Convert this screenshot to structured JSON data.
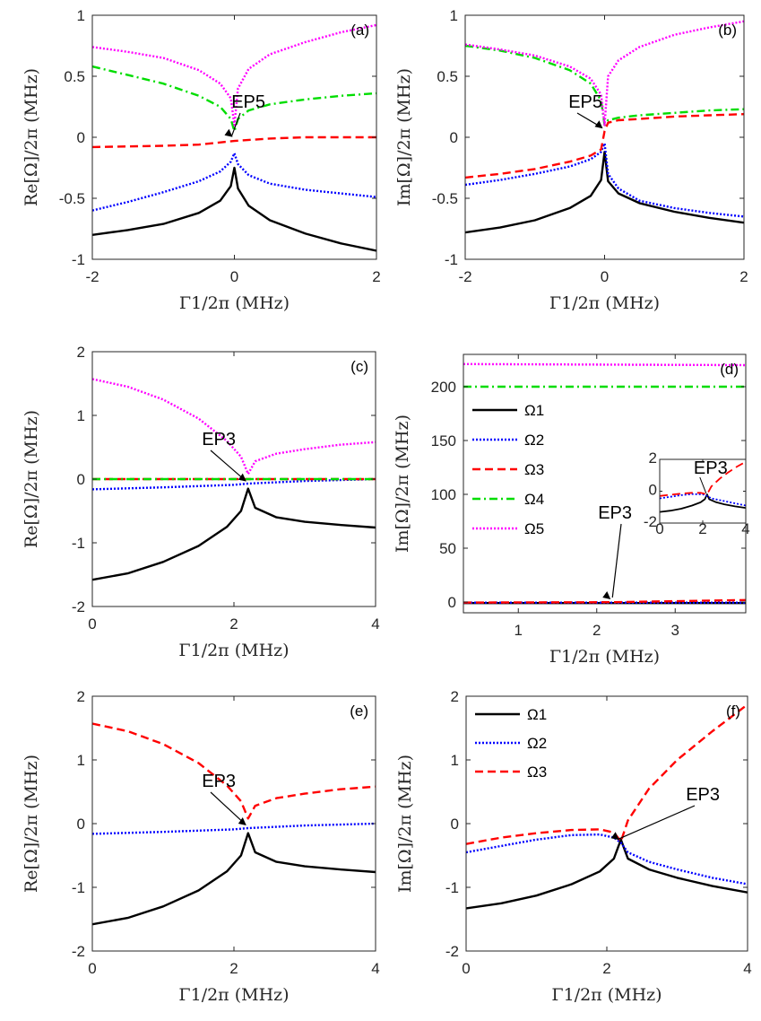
{
  "figure": {
    "series_styles": [
      {
        "name": "Ω1",
        "color": "#000000",
        "dash": "solid"
      },
      {
        "name": "Ω2",
        "color": "#0000ff",
        "dash": "dot"
      },
      {
        "name": "Ω3",
        "color": "#ff0000",
        "dash": "dash"
      },
      {
        "name": "Ω4",
        "color": "#00dd00",
        "dash": "dashdot"
      },
      {
        "name": "Ω5",
        "color": "#ff00ff",
        "dash": "dot"
      }
    ]
  },
  "chart_data": [
    {
      "id": "a",
      "panel_label": "(a)",
      "type": "line",
      "xlabel": "Γ1/2π (MHz)",
      "ylabel": "Re[Ω]/2π (MHz)",
      "xlim": [
        -2,
        2
      ],
      "ylim": [
        -1,
        1
      ],
      "xticks": [
        -2,
        0,
        2
      ],
      "xtick_labels": [
        "-2",
        "0",
        "2"
      ],
      "yticks": [
        -1,
        -0.5,
        0,
        0.5,
        1
      ],
      "ytick_labels": [
        "-1",
        "-0.5",
        "0",
        "0.5",
        "1"
      ],
      "annotation": {
        "text": "EP5",
        "x": 0,
        "y": -0.02
      },
      "series": [
        {
          "name": "Ω1",
          "x": [
            -2,
            -1.5,
            -1,
            -0.5,
            -0.2,
            -0.05,
            0,
            0.05,
            0.2,
            0.5,
            1,
            1.5,
            2
          ],
          "values": [
            -0.8,
            -0.76,
            -0.71,
            -0.62,
            -0.52,
            -0.4,
            -0.25,
            -0.42,
            -0.56,
            -0.68,
            -0.79,
            -0.87,
            -0.93
          ]
        },
        {
          "name": "Ω2",
          "x": [
            -2,
            -1.5,
            -1,
            -0.5,
            -0.2,
            -0.05,
            0,
            0.05,
            0.2,
            0.5,
            1,
            1.5,
            2
          ],
          "values": [
            -0.6,
            -0.53,
            -0.45,
            -0.36,
            -0.28,
            -0.2,
            -0.13,
            -0.22,
            -0.31,
            -0.38,
            -0.43,
            -0.46,
            -0.49
          ]
        },
        {
          "name": "Ω3",
          "x": [
            -2,
            -1,
            -0.5,
            0,
            0.5,
            1,
            2
          ],
          "values": [
            -0.08,
            -0.07,
            -0.06,
            -0.03,
            -0.01,
            0,
            0
          ]
        },
        {
          "name": "Ω4",
          "x": [
            -2,
            -1.5,
            -1,
            -0.5,
            -0.2,
            -0.05,
            0,
            0.05,
            0.2,
            0.5,
            1,
            1.5,
            2
          ],
          "values": [
            0.58,
            0.51,
            0.44,
            0.34,
            0.25,
            0.15,
            0.05,
            0.15,
            0.22,
            0.27,
            0.31,
            0.34,
            0.36
          ]
        },
        {
          "name": "Ω5",
          "x": [
            -2,
            -1.5,
            -1,
            -0.5,
            -0.2,
            -0.05,
            0,
            0.05,
            0.2,
            0.5,
            1,
            1.5,
            2
          ],
          "values": [
            0.74,
            0.7,
            0.65,
            0.55,
            0.44,
            0.32,
            0.1,
            0.4,
            0.56,
            0.68,
            0.78,
            0.86,
            0.92
          ]
        }
      ]
    },
    {
      "id": "b",
      "panel_label": "(b)",
      "type": "line",
      "xlabel": "Γ1/2π (MHz)",
      "ylabel": "Im[Ω]/2π (MHz)",
      "xlim": [
        -2,
        2
      ],
      "ylim": [
        -1,
        1
      ],
      "xticks": [
        -2,
        0,
        2
      ],
      "xtick_labels": [
        "-2",
        "0",
        "2"
      ],
      "yticks": [
        -1,
        -0.5,
        0,
        0.5,
        1
      ],
      "ytick_labels": [
        "-1",
        "-0.5",
        "0",
        "0.5",
        "1"
      ],
      "annotation": {
        "text": "EP5",
        "x": 0,
        "y": 0.05
      },
      "series": [
        {
          "name": "Ω1",
          "x": [
            -2,
            -1.5,
            -1,
            -0.5,
            -0.2,
            -0.05,
            0,
            0.05,
            0.2,
            0.5,
            1,
            1.5,
            2
          ],
          "values": [
            -0.78,
            -0.74,
            -0.68,
            -0.58,
            -0.48,
            -0.35,
            -0.12,
            -0.36,
            -0.46,
            -0.54,
            -0.61,
            -0.66,
            -0.7
          ]
        },
        {
          "name": "Ω2",
          "x": [
            -2,
            -1.5,
            -1,
            -0.5,
            -0.2,
            -0.05,
            0,
            0.05,
            0.2,
            0.5,
            1,
            1.5,
            2
          ],
          "values": [
            -0.39,
            -0.35,
            -0.3,
            -0.24,
            -0.18,
            -0.12,
            -0.05,
            -0.3,
            -0.42,
            -0.52,
            -0.58,
            -0.62,
            -0.65
          ]
        },
        {
          "name": "Ω3",
          "x": [
            -2,
            -1.5,
            -1,
            -0.5,
            -0.2,
            -0.05,
            0,
            0.05,
            0.2,
            0.5,
            1,
            1.5,
            2
          ],
          "values": [
            -0.33,
            -0.3,
            -0.26,
            -0.2,
            -0.15,
            -0.1,
            0.05,
            0.12,
            0.14,
            0.15,
            0.17,
            0.18,
            0.19
          ]
        },
        {
          "name": "Ω4",
          "x": [
            -2,
            -1.5,
            -1,
            -0.5,
            -0.2,
            -0.05,
            0,
            0.05,
            0.2,
            0.5,
            1,
            1.5,
            2
          ],
          "values": [
            0.75,
            0.71,
            0.65,
            0.55,
            0.44,
            0.3,
            0.1,
            0.14,
            0.16,
            0.18,
            0.2,
            0.22,
            0.23
          ]
        },
        {
          "name": "Ω5",
          "x": [
            -2,
            -1.5,
            -1,
            -0.5,
            -0.2,
            -0.05,
            0,
            0.05,
            0.2,
            0.5,
            1,
            1.5,
            2
          ],
          "values": [
            0.76,
            0.72,
            0.67,
            0.58,
            0.48,
            0.35,
            0.1,
            0.5,
            0.63,
            0.74,
            0.84,
            0.9,
            0.95
          ]
        }
      ]
    },
    {
      "id": "c",
      "panel_label": "(c)",
      "type": "line",
      "xlabel": "Γ1/2π (MHz)",
      "ylabel": "Re[Ω]/2π (MHz)",
      "xlim": [
        0,
        4
      ],
      "ylim": [
        -2,
        2
      ],
      "xticks": [
        0,
        2,
        4
      ],
      "xtick_labels": [
        "0",
        "2",
        "4"
      ],
      "yticks": [
        -2,
        -1,
        0,
        1,
        2
      ],
      "ytick_labels": [
        "-2",
        "-1",
        "0",
        "1",
        "2"
      ],
      "annotation": {
        "text": "EP3",
        "x": 2.2,
        "y": -0.08
      },
      "series": [
        {
          "name": "Ω1",
          "x": [
            0,
            0.5,
            1,
            1.5,
            1.9,
            2.1,
            2.2,
            2.3,
            2.6,
            3,
            3.5,
            4
          ],
          "values": [
            -1.58,
            -1.48,
            -1.3,
            -1.05,
            -0.75,
            -0.5,
            -0.15,
            -0.45,
            -0.6,
            -0.67,
            -0.72,
            -0.76
          ]
        },
        {
          "name": "Ω2",
          "x": [
            0,
            1,
            2,
            2.2,
            3,
            4
          ],
          "values": [
            -0.16,
            -0.13,
            -0.09,
            -0.07,
            -0.03,
            0
          ]
        },
        {
          "name": "Ω3",
          "x": [
            0,
            4
          ],
          "values": [
            0,
            0
          ]
        },
        {
          "name": "Ω4",
          "x": [
            0,
            4
          ],
          "values": [
            0,
            0
          ]
        },
        {
          "name": "Ω5",
          "x": [
            0,
            0.5,
            1,
            1.5,
            1.9,
            2.1,
            2.2,
            2.3,
            2.6,
            3,
            3.5,
            4
          ],
          "values": [
            1.57,
            1.45,
            1.25,
            0.95,
            0.6,
            0.35,
            0.08,
            0.28,
            0.4,
            0.47,
            0.54,
            0.58
          ]
        }
      ]
    },
    {
      "id": "d",
      "panel_label": "(d)",
      "type": "line",
      "xlabel": "Γ1/2π (MHz)",
      "ylabel": "Im[Ω]/2π (MHz)",
      "xlim": [
        0.3,
        3.9
      ],
      "ylim": [
        -10,
        230
      ],
      "xticks": [
        1,
        2,
        3
      ],
      "xtick_labels": [
        "1",
        "2",
        "3"
      ],
      "yticks": [
        0,
        50,
        100,
        150,
        200
      ],
      "ytick_labels": [
        "0",
        "50",
        "100",
        "150",
        "200"
      ],
      "annotation": {
        "text": "EP3",
        "x": 2.2,
        "y": 0
      },
      "legend": {
        "entries": [
          "Ω1",
          "Ω2",
          "Ω3",
          "Ω4",
          "Ω5"
        ]
      },
      "series": [
        {
          "name": "Ω1",
          "x": [
            0.3,
            3.9
          ],
          "values": [
            -1,
            -1
          ]
        },
        {
          "name": "Ω2",
          "x": [
            0.3,
            3.9
          ],
          "values": [
            -0.6,
            -0.6
          ]
        },
        {
          "name": "Ω3",
          "x": [
            0.3,
            2.2,
            3.9
          ],
          "values": [
            -0.5,
            -0.2,
            1.8
          ]
        },
        {
          "name": "Ω4",
          "x": [
            0.3,
            3.9
          ],
          "values": [
            200,
            200
          ]
        },
        {
          "name": "Ω5",
          "x": [
            0.3,
            3.9
          ],
          "values": [
            221,
            220
          ]
        }
      ],
      "inset": {
        "xlim": [
          0,
          4
        ],
        "ylim": [
          -2,
          2
        ],
        "xticks": [
          0,
          2,
          4
        ],
        "xtick_labels": [
          "0",
          "2",
          "4"
        ],
        "yticks": [
          -2,
          0,
          2
        ],
        "ytick_labels": [
          "-2",
          "0",
          "2"
        ],
        "annotation": {
          "text": "EP3",
          "x": 2.2,
          "y": -0.3
        },
        "series": [
          {
            "name": "Ω1",
            "x": [
              0,
              0.5,
              1,
              1.5,
              1.9,
              2.1,
              2.2,
              2.3,
              2.6,
              3,
              3.5,
              4
            ],
            "values": [
              -1.3,
              -1.22,
              -1.1,
              -0.9,
              -0.7,
              -0.5,
              -0.2,
              -0.5,
              -0.68,
              -0.82,
              -0.95,
              -1.05
            ]
          },
          {
            "name": "Ω2",
            "x": [
              0,
              0.5,
              1,
              1.5,
              2,
              2.2,
              2.4,
              3,
              3.5,
              4
            ],
            "values": [
              -0.45,
              -0.35,
              -0.25,
              -0.18,
              -0.2,
              -0.3,
              -0.45,
              -0.62,
              -0.76,
              -0.9
            ]
          },
          {
            "name": "Ω3",
            "x": [
              0,
              0.5,
              1,
              1.5,
              1.9,
              2.2,
              2.4,
              2.8,
              3.2,
              3.6,
              4
            ],
            "values": [
              -0.3,
              -0.22,
              -0.15,
              -0.1,
              -0.1,
              -0.2,
              0.3,
              0.8,
              1.2,
              1.55,
              1.85
            ]
          }
        ]
      }
    },
    {
      "id": "e",
      "panel_label": "(e)",
      "type": "line",
      "xlabel": "Γ1/2π (MHz)",
      "ylabel": "Re[Ω]/2π (MHz)",
      "xlim": [
        0,
        4
      ],
      "ylim": [
        -2,
        2
      ],
      "xticks": [
        0,
        2,
        4
      ],
      "xtick_labels": [
        "0",
        "2",
        "4"
      ],
      "yticks": [
        -2,
        -1,
        0,
        1,
        2
      ],
      "ytick_labels": [
        "-2",
        "-1",
        "0",
        "1",
        "2"
      ],
      "annotation": {
        "text": "EP3",
        "x": 2.2,
        "y": -0.07
      },
      "series": [
        {
          "name": "Ω1",
          "x": [
            0,
            0.5,
            1,
            1.5,
            1.9,
            2.1,
            2.2,
            2.3,
            2.6,
            3,
            3.5,
            4
          ],
          "values": [
            -1.58,
            -1.48,
            -1.3,
            -1.05,
            -0.75,
            -0.5,
            -0.15,
            -0.45,
            -0.6,
            -0.67,
            -0.72,
            -0.76
          ]
        },
        {
          "name": "Ω2",
          "x": [
            0,
            1,
            2,
            2.2,
            3,
            4
          ],
          "values": [
            -0.16,
            -0.13,
            -0.09,
            -0.07,
            -0.03,
            0
          ]
        },
        {
          "name": "Ω3",
          "x": [
            0,
            0.5,
            1,
            1.5,
            1.9,
            2.1,
            2.2,
            2.3,
            2.6,
            3,
            3.5,
            4
          ],
          "values": [
            1.57,
            1.45,
            1.25,
            0.95,
            0.6,
            0.35,
            0.08,
            0.28,
            0.4,
            0.47,
            0.54,
            0.58
          ]
        }
      ]
    },
    {
      "id": "f",
      "panel_label": "(f)",
      "type": "line",
      "xlabel": "Γ1/2π (MHz)",
      "ylabel": "Im[Ω]/2π (MHz)",
      "xlim": [
        0,
        4
      ],
      "ylim": [
        -2,
        2
      ],
      "xticks": [
        0,
        2,
        4
      ],
      "xtick_labels": [
        "0",
        "2",
        "4"
      ],
      "yticks": [
        -2,
        -1,
        0,
        1,
        2
      ],
      "ytick_labels": [
        "-2",
        "-1",
        "0",
        "1",
        "2"
      ],
      "annotation": {
        "text": "EP3",
        "x": 2.2,
        "y": -0.3
      },
      "legend": {
        "entries": [
          "Ω1",
          "Ω2",
          "Ω3"
        ]
      },
      "series": [
        {
          "name": "Ω1",
          "x": [
            0,
            0.5,
            1,
            1.5,
            1.9,
            2.1,
            2.2,
            2.3,
            2.6,
            3,
            3.5,
            4
          ],
          "values": [
            -1.33,
            -1.25,
            -1.13,
            -0.95,
            -0.75,
            -0.55,
            -0.25,
            -0.55,
            -0.72,
            -0.85,
            -0.98,
            -1.08
          ]
        },
        {
          "name": "Ω2",
          "x": [
            0,
            0.5,
            1,
            1.5,
            1.9,
            2.1,
            2.2,
            2.3,
            2.6,
            3,
            3.5,
            4
          ],
          "values": [
            -0.45,
            -0.35,
            -0.25,
            -0.18,
            -0.17,
            -0.22,
            -0.3,
            -0.45,
            -0.6,
            -0.72,
            -0.85,
            -0.95
          ]
        },
        {
          "name": "Ω3",
          "x": [
            0,
            0.5,
            1,
            1.5,
            1.9,
            2.1,
            2.2,
            2.3,
            2.6,
            3,
            3.5,
            4
          ],
          "values": [
            -0.32,
            -0.22,
            -0.15,
            -0.1,
            -0.09,
            -0.14,
            -0.28,
            0.05,
            0.55,
            1.0,
            1.45,
            1.87
          ]
        }
      ]
    }
  ]
}
